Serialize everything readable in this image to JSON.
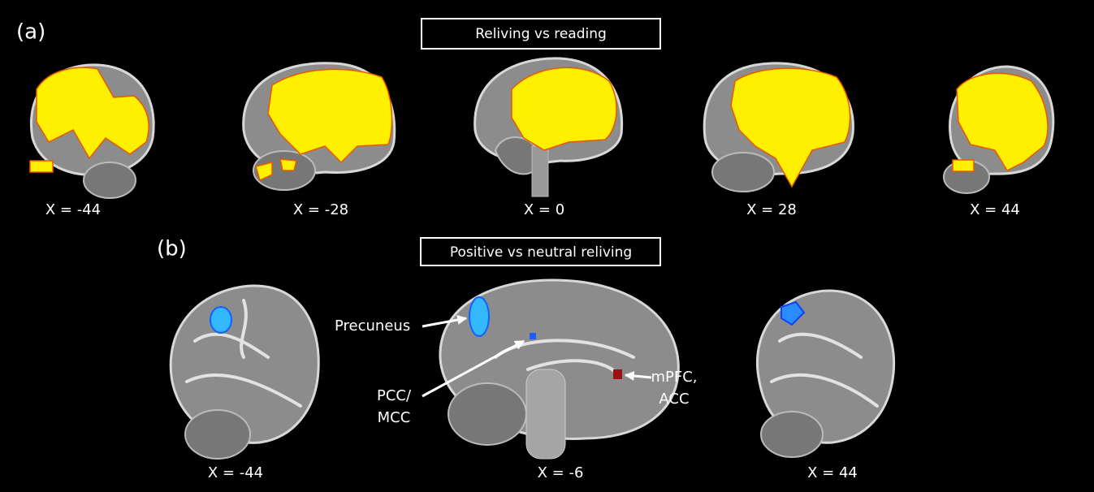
{
  "panel_a": {
    "label": "(a)",
    "title": "Reliving vs reading",
    "slices": [
      "X = -44",
      "X = -28",
      "X = 0",
      "X = 28",
      "X = 44"
    ]
  },
  "panel_b": {
    "label": "(b)",
    "title": "Positive vs neutral reliving",
    "slices": [
      "X = -44",
      "X = -6",
      "X = 44"
    ],
    "annotations": [
      {
        "lines": [
          "Precuneus"
        ]
      },
      {
        "lines": [
          "PCC/",
          "MCC"
        ]
      },
      {
        "lines": [
          "mPFC,",
          "ACC"
        ]
      }
    ]
  }
}
